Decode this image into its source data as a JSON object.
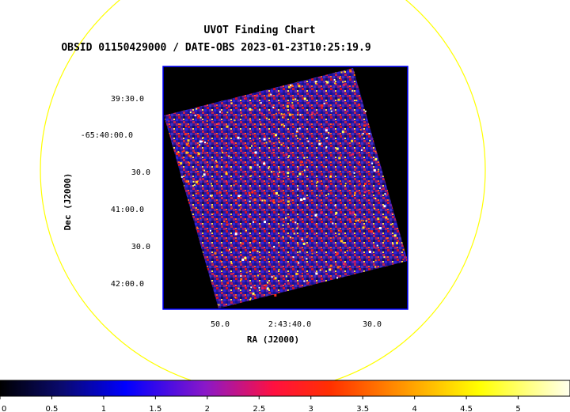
{
  "chart_data": {
    "type": "heatmap",
    "title": "UVOT Finding Chart",
    "subtitle": "OBSID 01150429000 / DATE-OBS 2023-01-23T10:25:19.9",
    "xlabel": "RA (J2000)",
    "ylabel": "Dec (J2000)",
    "x_ticks": [
      "50.0",
      "2:43:40.0",
      "30.0"
    ],
    "y_ticks": [
      "39:30.0",
      "-65:40:00.0",
      "30.0",
      "41:00.0",
      "30.0",
      "42:00.0"
    ],
    "colorbar": {
      "ticks": [
        "0",
        "0.5",
        "1",
        "1.5",
        "2",
        "2.5",
        "3",
        "3.5",
        "4",
        "4.5",
        "5"
      ],
      "range": [
        0,
        5.5
      ],
      "colormap": "heat (black-blue-purple-red-yellow-white)"
    },
    "overlay": "circle",
    "colors": {
      "background": "#000000",
      "frame": "#0000ff",
      "circle": "#ffff00"
    }
  }
}
